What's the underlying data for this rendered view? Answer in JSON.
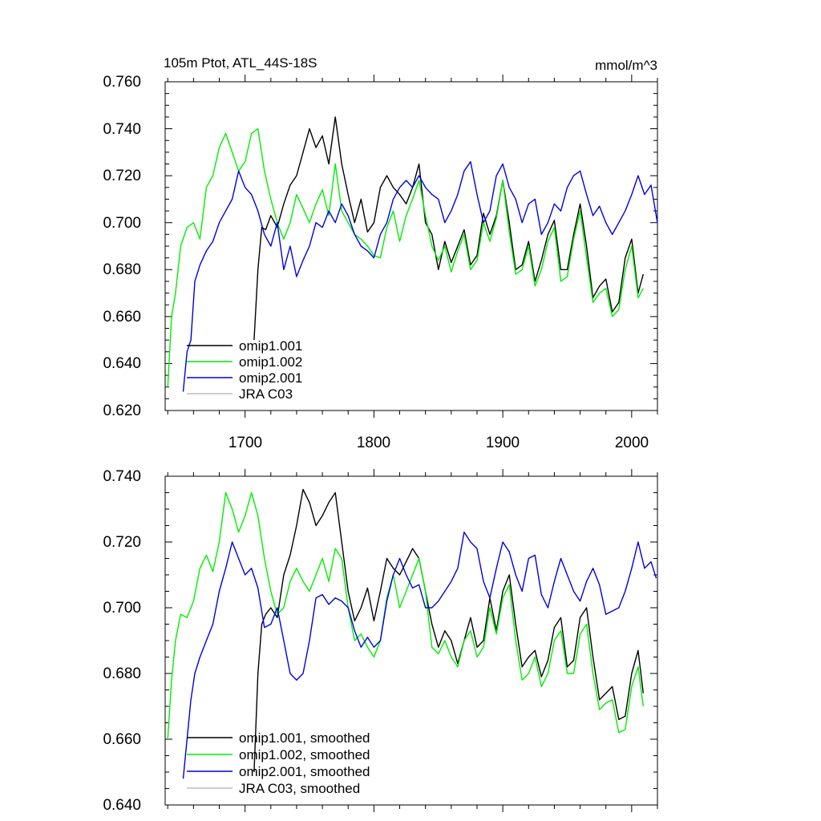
{
  "top": {
    "title_left": "105m Ptot, ATL_44S-18S",
    "title_right": "mmol/m^3",
    "y_ticks": [
      "0.620",
      "0.640",
      "0.660",
      "0.680",
      "0.700",
      "0.720",
      "0.740",
      "0.760"
    ],
    "x_ticks": [
      "1700",
      "1800",
      "1900",
      "2000"
    ],
    "legend": [
      "omip1.001",
      "omip1.002",
      "omip2.001",
      "JRA C03"
    ]
  },
  "bottom": {
    "y_ticks": [
      "0.640",
      "0.660",
      "0.680",
      "0.700",
      "0.720",
      "0.740"
    ],
    "legend": [
      "omip1.001, smoothed",
      "omip1.002, smoothed",
      "omip2.001, smoothed",
      "JRA C03, smoothed"
    ]
  },
  "colors": {
    "omip1_001": "#000000",
    "omip1_002": "#00ee00",
    "omip2_001": "#0000dd",
    "jra": "#bbbbbb"
  },
  "chart_data": [
    {
      "type": "line",
      "title": "105m Ptot, ATL_44S-18S",
      "units": "mmol/m^3",
      "xlim": [
        1638,
        2020
      ],
      "ylim": [
        0.62,
        0.76
      ],
      "series": [
        {
          "name": "omip1.001",
          "color": "#000000",
          "x": [
            1707,
            1710,
            1713,
            1716,
            1720,
            1725,
            1730,
            1735,
            1740,
            1745,
            1750,
            1755,
            1760,
            1765,
            1770,
            1775,
            1780,
            1785,
            1790,
            1795,
            1800,
            1805,
            1810,
            1815,
            1820,
            1825,
            1830,
            1835,
            1840,
            1845,
            1850,
            1855,
            1860,
            1865,
            1870,
            1875,
            1880,
            1885,
            1890,
            1895,
            1900,
            1905,
            1910,
            1915,
            1920,
            1925,
            1930,
            1935,
            1940,
            1945,
            1950,
            1955,
            1960,
            1965,
            1970,
            1975,
            1980,
            1985,
            1990,
            1995,
            2000,
            2005,
            2009
          ],
          "y": [
            0.65,
            0.68,
            0.698,
            0.697,
            0.703,
            0.698,
            0.708,
            0.716,
            0.72,
            0.73,
            0.74,
            0.732,
            0.737,
            0.725,
            0.745,
            0.725,
            0.712,
            0.7,
            0.71,
            0.696,
            0.7,
            0.715,
            0.72,
            0.715,
            0.712,
            0.708,
            0.715,
            0.725,
            0.7,
            0.695,
            0.68,
            0.692,
            0.683,
            0.69,
            0.697,
            0.682,
            0.686,
            0.704,
            0.695,
            0.703,
            0.718,
            0.7,
            0.68,
            0.682,
            0.692,
            0.675,
            0.684,
            0.695,
            0.701,
            0.68,
            0.68,
            0.695,
            0.708,
            0.69,
            0.668,
            0.673,
            0.676,
            0.662,
            0.666,
            0.685,
            0.693,
            0.67,
            0.678
          ]
        },
        {
          "name": "omip1.002",
          "color": "#00ee00",
          "x": [
            1640,
            1643,
            1646,
            1650,
            1655,
            1660,
            1665,
            1670,
            1675,
            1680,
            1685,
            1690,
            1695,
            1700,
            1705,
            1710,
            1715,
            1720,
            1725,
            1730,
            1735,
            1740,
            1745,
            1750,
            1755,
            1760,
            1765,
            1770,
            1775,
            1780,
            1785,
            1790,
            1795,
            1800,
            1805,
            1810,
            1815,
            1820,
            1825,
            1830,
            1835,
            1840,
            1845,
            1850,
            1855,
            1860,
            1865,
            1870,
            1875,
            1880,
            1885,
            1890,
            1895,
            1900,
            1905,
            1910,
            1915,
            1920,
            1925,
            1930,
            1935,
            1940,
            1945,
            1950,
            1955,
            1960,
            1965,
            1970,
            1975,
            1980,
            1985,
            1990,
            1995,
            2000,
            2005,
            2009
          ],
          "y": [
            0.63,
            0.66,
            0.67,
            0.69,
            0.698,
            0.7,
            0.693,
            0.715,
            0.72,
            0.732,
            0.738,
            0.73,
            0.722,
            0.726,
            0.738,
            0.74,
            0.722,
            0.71,
            0.7,
            0.693,
            0.7,
            0.712,
            0.706,
            0.7,
            0.708,
            0.714,
            0.703,
            0.725,
            0.705,
            0.7,
            0.695,
            0.693,
            0.69,
            0.686,
            0.685,
            0.698,
            0.705,
            0.692,
            0.703,
            0.71,
            0.718,
            0.703,
            0.69,
            0.684,
            0.69,
            0.679,
            0.688,
            0.695,
            0.68,
            0.684,
            0.7,
            0.692,
            0.702,
            0.718,
            0.696,
            0.678,
            0.68,
            0.69,
            0.673,
            0.68,
            0.692,
            0.698,
            0.675,
            0.677,
            0.693,
            0.705,
            0.685,
            0.666,
            0.67,
            0.672,
            0.66,
            0.663,
            0.68,
            0.69,
            0.668,
            0.672
          ]
        },
        {
          "name": "omip2.001",
          "color": "#0000dd",
          "x": [
            1652,
            1655,
            1658,
            1661,
            1665,
            1670,
            1675,
            1680,
            1685,
            1690,
            1695,
            1700,
            1705,
            1710,
            1715,
            1720,
            1725,
            1730,
            1735,
            1740,
            1745,
            1750,
            1755,
            1760,
            1765,
            1770,
            1775,
            1780,
            1785,
            1790,
            1795,
            1800,
            1805,
            1810,
            1815,
            1820,
            1825,
            1830,
            1835,
            1840,
            1845,
            1850,
            1855,
            1860,
            1865,
            1870,
            1875,
            1880,
            1885,
            1890,
            1895,
            1900,
            1905,
            1910,
            1915,
            1920,
            1925,
            1930,
            1935,
            1940,
            1945,
            1950,
            1955,
            1960,
            1965,
            1970,
            1975,
            1980,
            1985,
            1990,
            1995,
            2000,
            2005,
            2010,
            2015,
            2020
          ],
          "y": [
            0.628,
            0.645,
            0.65,
            0.675,
            0.682,
            0.688,
            0.692,
            0.7,
            0.705,
            0.71,
            0.722,
            0.715,
            0.712,
            0.705,
            0.695,
            0.69,
            0.7,
            0.68,
            0.69,
            0.677,
            0.684,
            0.69,
            0.7,
            0.698,
            0.705,
            0.7,
            0.708,
            0.703,
            0.695,
            0.69,
            0.688,
            0.685,
            0.695,
            0.7,
            0.71,
            0.715,
            0.718,
            0.715,
            0.72,
            0.715,
            0.712,
            0.71,
            0.7,
            0.705,
            0.712,
            0.722,
            0.726,
            0.712,
            0.7,
            0.705,
            0.72,
            0.725,
            0.715,
            0.71,
            0.7,
            0.708,
            0.71,
            0.695,
            0.7,
            0.708,
            0.705,
            0.715,
            0.72,
            0.722,
            0.712,
            0.703,
            0.707,
            0.7,
            0.695,
            0.7,
            0.705,
            0.712,
            0.72,
            0.712,
            0.716,
            0.7
          ]
        },
        {
          "name": "JRA C03",
          "color": "#bbbbbb",
          "x": [],
          "y": []
        }
      ]
    },
    {
      "type": "line",
      "xlim": [
        1638,
        2020
      ],
      "ylim": [
        0.64,
        0.74
      ],
      "series": [
        {
          "name": "omip1.001, smoothed",
          "color": "#000000",
          "x": [
            1707,
            1710,
            1713,
            1716,
            1720,
            1725,
            1730,
            1735,
            1740,
            1745,
            1750,
            1755,
            1760,
            1765,
            1770,
            1775,
            1780,
            1785,
            1790,
            1795,
            1800,
            1805,
            1810,
            1815,
            1820,
            1825,
            1830,
            1835,
            1840,
            1845,
            1850,
            1855,
            1860,
            1865,
            1870,
            1875,
            1880,
            1885,
            1890,
            1895,
            1900,
            1905,
            1910,
            1915,
            1920,
            1925,
            1930,
            1935,
            1940,
            1945,
            1950,
            1955,
            1960,
            1965,
            1970,
            1975,
            1980,
            1985,
            1990,
            1995,
            2000,
            2005,
            2009
          ],
          "y": [
            0.65,
            0.68,
            0.695,
            0.698,
            0.7,
            0.697,
            0.71,
            0.716,
            0.725,
            0.736,
            0.732,
            0.725,
            0.728,
            0.732,
            0.735,
            0.72,
            0.705,
            0.696,
            0.7,
            0.706,
            0.696,
            0.705,
            0.715,
            0.712,
            0.71,
            0.714,
            0.718,
            0.715,
            0.705,
            0.695,
            0.688,
            0.693,
            0.69,
            0.683,
            0.69,
            0.697,
            0.688,
            0.69,
            0.703,
            0.693,
            0.705,
            0.71,
            0.695,
            0.682,
            0.685,
            0.687,
            0.679,
            0.684,
            0.694,
            0.697,
            0.682,
            0.684,
            0.697,
            0.7,
            0.685,
            0.672,
            0.674,
            0.676,
            0.666,
            0.667,
            0.68,
            0.687,
            0.674
          ]
        },
        {
          "name": "omip1.002, smoothed",
          "color": "#00ee00",
          "x": [
            1640,
            1643,
            1646,
            1650,
            1655,
            1660,
            1665,
            1670,
            1675,
            1680,
            1685,
            1690,
            1695,
            1700,
            1705,
            1710,
            1715,
            1720,
            1725,
            1730,
            1735,
            1740,
            1745,
            1750,
            1755,
            1760,
            1765,
            1770,
            1775,
            1780,
            1785,
            1790,
            1795,
            1800,
            1805,
            1810,
            1815,
            1820,
            1825,
            1830,
            1835,
            1840,
            1845,
            1850,
            1855,
            1860,
            1865,
            1870,
            1875,
            1880,
            1885,
            1890,
            1895,
            1900,
            1905,
            1910,
            1915,
            1920,
            1925,
            1930,
            1935,
            1940,
            1945,
            1950,
            1955,
            1960,
            1965,
            1970,
            1975,
            1980,
            1985,
            1990,
            1995,
            2000,
            2005,
            2009
          ],
          "y": [
            0.66,
            0.678,
            0.69,
            0.698,
            0.697,
            0.702,
            0.712,
            0.716,
            0.711,
            0.72,
            0.735,
            0.73,
            0.723,
            0.728,
            0.735,
            0.728,
            0.715,
            0.705,
            0.698,
            0.7,
            0.708,
            0.712,
            0.708,
            0.705,
            0.71,
            0.715,
            0.708,
            0.718,
            0.715,
            0.7,
            0.69,
            0.692,
            0.688,
            0.685,
            0.69,
            0.703,
            0.71,
            0.7,
            0.705,
            0.71,
            0.715,
            0.705,
            0.688,
            0.686,
            0.69,
            0.685,
            0.682,
            0.69,
            0.693,
            0.685,
            0.688,
            0.7,
            0.692,
            0.703,
            0.707,
            0.69,
            0.678,
            0.68,
            0.685,
            0.676,
            0.68,
            0.69,
            0.693,
            0.68,
            0.68,
            0.692,
            0.695,
            0.68,
            0.669,
            0.671,
            0.672,
            0.662,
            0.663,
            0.676,
            0.682,
            0.67
          ]
        },
        {
          "name": "omip2.001, smoothed",
          "color": "#0000dd",
          "x": [
            1652,
            1655,
            1658,
            1661,
            1665,
            1670,
            1675,
            1680,
            1685,
            1690,
            1695,
            1700,
            1705,
            1710,
            1715,
            1720,
            1725,
            1730,
            1735,
            1740,
            1745,
            1750,
            1755,
            1760,
            1765,
            1770,
            1775,
            1780,
            1785,
            1790,
            1795,
            1800,
            1805,
            1810,
            1815,
            1820,
            1825,
            1830,
            1835,
            1840,
            1845,
            1850,
            1855,
            1860,
            1865,
            1870,
            1875,
            1880,
            1885,
            1890,
            1895,
            1900,
            1905,
            1910,
            1915,
            1920,
            1925,
            1930,
            1935,
            1940,
            1945,
            1950,
            1955,
            1960,
            1965,
            1970,
            1975,
            1980,
            1985,
            1990,
            1995,
            2000,
            2005,
            2010,
            2015,
            2019
          ],
          "y": [
            0.648,
            0.66,
            0.672,
            0.68,
            0.685,
            0.69,
            0.695,
            0.705,
            0.712,
            0.72,
            0.715,
            0.71,
            0.712,
            0.706,
            0.694,
            0.695,
            0.7,
            0.69,
            0.68,
            0.678,
            0.68,
            0.69,
            0.703,
            0.704,
            0.701,
            0.703,
            0.702,
            0.7,
            0.693,
            0.688,
            0.691,
            0.688,
            0.69,
            0.702,
            0.71,
            0.715,
            0.71,
            0.706,
            0.707,
            0.7,
            0.7,
            0.702,
            0.705,
            0.708,
            0.712,
            0.723,
            0.72,
            0.718,
            0.708,
            0.703,
            0.712,
            0.72,
            0.717,
            0.71,
            0.705,
            0.715,
            0.716,
            0.704,
            0.7,
            0.708,
            0.715,
            0.71,
            0.705,
            0.702,
            0.708,
            0.712,
            0.707,
            0.698,
            0.699,
            0.7,
            0.705,
            0.712,
            0.72,
            0.712,
            0.714,
            0.709
          ]
        },
        {
          "name": "JRA C03, smoothed",
          "color": "#bbbbbb",
          "x": [],
          "y": []
        }
      ]
    }
  ]
}
